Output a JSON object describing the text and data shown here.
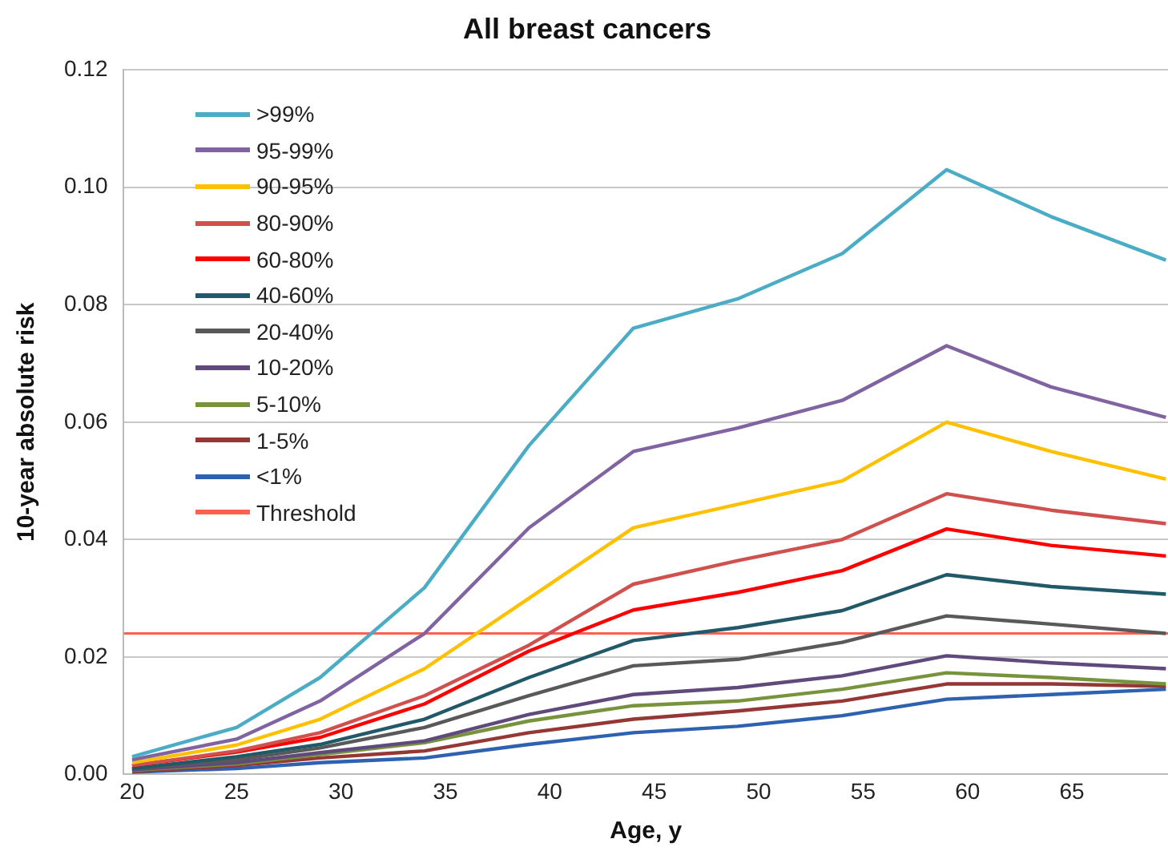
{
  "chart_data": {
    "type": "line",
    "title": "All breast cancers",
    "xlabel": "Age, y",
    "ylabel": "10-year absolute risk",
    "x": [
      20,
      25,
      29,
      34,
      39,
      44,
      49,
      54,
      59,
      64,
      69.5
    ],
    "series": [
      {
        "name": ">99%",
        "color": "#4bacc6",
        "values": [
          0.003,
          0.008,
          0.0165,
          0.0318,
          0.056,
          0.076,
          0.081,
          0.0887,
          0.103,
          0.095,
          0.0876
        ]
      },
      {
        "name": "95-99%",
        "color": "#8064a2",
        "values": [
          0.0025,
          0.006,
          0.0125,
          0.024,
          0.042,
          0.055,
          0.059,
          0.0637,
          0.073,
          0.066,
          0.0608
        ]
      },
      {
        "name": "90-95%",
        "color": "#ffc000",
        "values": [
          0.002,
          0.005,
          0.0094,
          0.018,
          0.03,
          0.042,
          0.046,
          0.05,
          0.06,
          0.055,
          0.0503
        ]
      },
      {
        "name": "80-90%",
        "color": "#d0504d",
        "values": [
          0.0015,
          0.004,
          0.0071,
          0.0134,
          0.022,
          0.0324,
          0.0364,
          0.04,
          0.0478,
          0.045,
          0.0427
        ]
      },
      {
        "name": "60-80%",
        "color": "#ff0000",
        "values": [
          0.0015,
          0.0038,
          0.0063,
          0.012,
          0.021,
          0.028,
          0.031,
          0.0347,
          0.0418,
          0.039,
          0.0372
        ]
      },
      {
        "name": "40-60%",
        "color": "#215968",
        "values": [
          0.001,
          0.003,
          0.0051,
          0.0094,
          0.0165,
          0.0228,
          0.025,
          0.0279,
          0.034,
          0.032,
          0.0307
        ]
      },
      {
        "name": "20-40%",
        "color": "#595959",
        "values": [
          0.001,
          0.0025,
          0.0045,
          0.008,
          0.0134,
          0.0185,
          0.0196,
          0.0225,
          0.027,
          0.0256,
          0.024
        ]
      },
      {
        "name": "10-20%",
        "color": "#604a7b",
        "values": [
          0.0008,
          0.002,
          0.0037,
          0.0057,
          0.0102,
          0.0136,
          0.0148,
          0.0168,
          0.0202,
          0.019,
          0.018
        ]
      },
      {
        "name": "5-10%",
        "color": "#77933c",
        "values": [
          0.0007,
          0.0018,
          0.0034,
          0.0054,
          0.0091,
          0.0117,
          0.0125,
          0.0145,
          0.0173,
          0.0165,
          0.0154
        ]
      },
      {
        "name": "1-5%",
        "color": "#953735",
        "values": [
          0.0005,
          0.0015,
          0.0028,
          0.004,
          0.0071,
          0.0094,
          0.0108,
          0.0125,
          0.0154,
          0.0154,
          0.015
        ]
      },
      {
        "name": "<1%",
        "color": "#2e62b0",
        "values": [
          0.0004,
          0.001,
          0.002,
          0.0028,
          0.0051,
          0.0071,
          0.0082,
          0.01,
          0.0128,
          0.0136,
          0.0145
        ]
      }
    ],
    "ref_lines": [
      {
        "axis": "y",
        "value": 0.024,
        "label": "Threshold",
        "color": "#ff6050"
      }
    ],
    "xlim": [
      19.6,
      69.6
    ],
    "xticks": [
      20,
      25,
      30,
      35,
      40,
      45,
      50,
      55,
      60,
      65
    ],
    "ylim": [
      0,
      0.12
    ],
    "yticks": [
      {
        "value": 0,
        "label": "0.00"
      },
      {
        "value": 0.02,
        "label": "0.02"
      },
      {
        "value": 0.04,
        "label": "0.04"
      },
      {
        "value": 0.06,
        "label": "0.06"
      },
      {
        "value": 0.08,
        "label": "0.08"
      },
      {
        "value": 0.1,
        "label": "0.10"
      },
      {
        "value": 0.12,
        "label": "0.12"
      }
    ],
    "grid": "y",
    "legend": "top left",
    "marker": "none",
    "line_style": "solid"
  }
}
